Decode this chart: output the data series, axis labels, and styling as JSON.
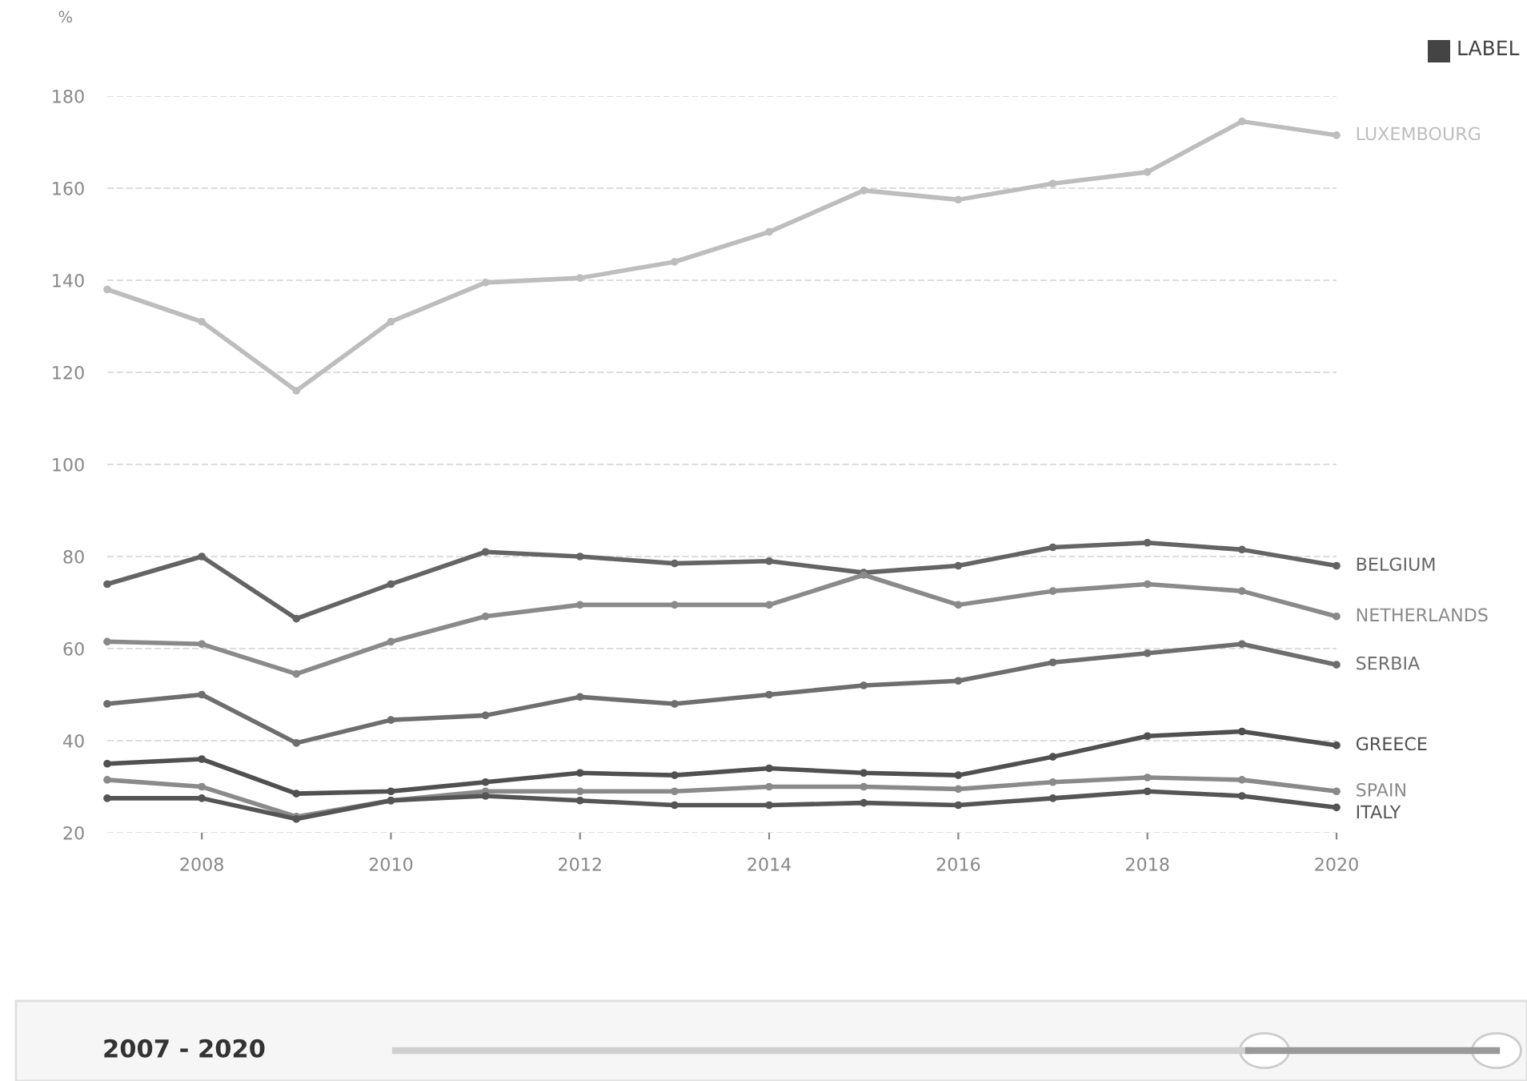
{
  "chart_data": {
    "type": "line",
    "ylabel": "%",
    "x": [
      2007,
      2008,
      2009,
      2010,
      2011,
      2012,
      2013,
      2014,
      2015,
      2016,
      2017,
      2018,
      2019,
      2020
    ],
    "series": [
      {
        "name": "LUXEMBOURG",
        "color": "#bdbdbd",
        "values": [
          138,
          131,
          116,
          131,
          139.5,
          140.5,
          144,
          150.5,
          159.5,
          157.5,
          161,
          163.5,
          174.5,
          171.5
        ]
      },
      {
        "name": "BELGIUM",
        "color": "#646464",
        "values": [
          74,
          80,
          66.5,
          74,
          81,
          80,
          78.5,
          79,
          76.5,
          78,
          82,
          83,
          81.5,
          78
        ]
      },
      {
        "name": "NETHERLANDS",
        "color": "#8a8a8a",
        "values": [
          61.5,
          61,
          54.5,
          61.5,
          67,
          69.5,
          69.5,
          69.5,
          76,
          69.5,
          72.5,
          74,
          72.5,
          67
        ]
      },
      {
        "name": "SERBIA",
        "color": "#6e6e6e",
        "values": [
          48,
          50,
          39.5,
          44.5,
          45.5,
          49.5,
          48,
          50,
          52,
          53,
          57,
          59,
          61,
          56.5
        ]
      },
      {
        "name": "GREECE",
        "color": "#505050",
        "values": [
          35,
          36,
          28.5,
          29,
          31,
          33,
          32.5,
          34,
          33,
          32.5,
          36.5,
          41,
          42,
          39
        ]
      },
      {
        "name": "SPAIN",
        "color": "#8a8a8a",
        "values": [
          31.5,
          30,
          23.5,
          27,
          29,
          29,
          29,
          30,
          30,
          29.5,
          31,
          32,
          31.5,
          29
        ]
      },
      {
        "name": "ITALY",
        "color": "#555555",
        "values": [
          27.5,
          27.5,
          23,
          27,
          28,
          27,
          26,
          26,
          26.5,
          26,
          27.5,
          29,
          28,
          25.5
        ]
      }
    ],
    "xlim": [
      2007,
      2020
    ],
    "xticks": [
      2008,
      2010,
      2012,
      2014,
      2016,
      2018,
      2020
    ],
    "ylim": [
      20,
      180
    ],
    "yticks": [
      20,
      40,
      60,
      80,
      100,
      120,
      140,
      160,
      180
    ],
    "grid": "y",
    "legend": false,
    "marker": "circle",
    "line_style": "solid",
    "annotations": [
      "LABEL",
      "2007 - 2020"
    ]
  }
}
